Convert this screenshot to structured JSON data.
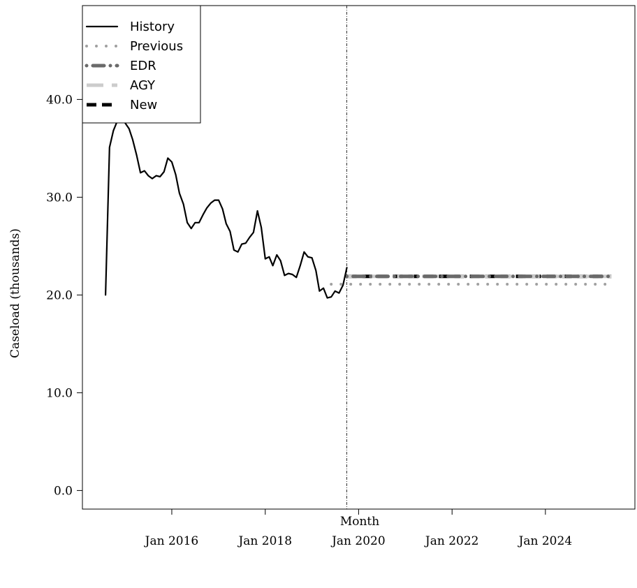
{
  "chart_data": {
    "type": "line",
    "xlabel": "Month",
    "ylabel": "Caseload (thousands)",
    "ylim": [
      -1.9,
      49.6
    ],
    "xlim": [
      "2014-02-01",
      "2025-12-01"
    ],
    "x_ticks": [
      {
        "date": "2016-01-01",
        "label": "Jan 2016"
      },
      {
        "date": "2018-01-01",
        "label": "Jan 2018"
      },
      {
        "date": "2020-01-01",
        "label": "Jan 2020"
      },
      {
        "date": "2022-01-01",
        "label": "Jan 2022"
      },
      {
        "date": "2024-01-01",
        "label": "Jan 2024"
      }
    ],
    "y_ticks": [
      {
        "value": 0,
        "label": "0.0"
      },
      {
        "value": 10,
        "label": "10.0"
      },
      {
        "value": 20,
        "label": "20.0"
      },
      {
        "value": 30,
        "label": "30.0"
      },
      {
        "value": 40,
        "label": "40.0"
      }
    ],
    "vline_date": "2019-10-01",
    "legend_position": "top-left",
    "series": [
      {
        "name": "History",
        "style": "solid",
        "color": "#000000",
        "x": [
          "2014-08-01",
          "2014-09-01",
          "2014-10-01",
          "2014-11-01",
          "2014-12-01",
          "2015-01-01",
          "2015-02-01",
          "2015-03-01",
          "2015-04-01",
          "2015-05-01",
          "2015-06-01",
          "2015-07-01",
          "2015-08-01",
          "2015-09-01",
          "2015-10-01",
          "2015-11-01",
          "2015-12-01",
          "2016-01-01",
          "2016-02-01",
          "2016-03-01",
          "2016-04-01",
          "2016-05-01",
          "2016-06-01",
          "2016-07-01",
          "2016-08-01",
          "2016-09-01",
          "2016-10-01",
          "2016-11-01",
          "2016-12-01",
          "2017-01-01",
          "2017-02-01",
          "2017-03-01",
          "2017-04-01",
          "2017-05-01",
          "2017-06-01",
          "2017-07-01",
          "2017-08-01",
          "2017-09-01",
          "2017-10-01",
          "2017-11-01",
          "2017-12-01",
          "2018-01-01",
          "2018-02-01",
          "2018-03-01",
          "2018-04-01",
          "2018-05-01",
          "2018-06-01",
          "2018-07-01",
          "2018-08-01",
          "2018-09-01",
          "2018-10-01",
          "2018-11-01",
          "2018-12-01",
          "2019-01-01",
          "2019-02-01",
          "2019-03-01",
          "2019-04-01",
          "2019-05-01",
          "2019-06-01",
          "2019-07-01",
          "2019-08-01",
          "2019-09-01",
          "2019-10-01"
        ],
        "values": [
          20.0,
          35.1,
          36.8,
          37.8,
          39.4,
          37.6,
          37.0,
          35.9,
          34.3,
          32.5,
          32.7,
          32.2,
          31.9,
          32.2,
          32.1,
          32.6,
          34.0,
          33.6,
          32.3,
          30.4,
          29.3,
          27.4,
          26.8,
          27.4,
          27.4,
          28.2,
          28.9,
          29.4,
          29.7,
          29.7,
          28.8,
          27.3,
          26.5,
          24.6,
          24.4,
          25.2,
          25.3,
          25.9,
          26.4,
          28.6,
          26.9,
          23.7,
          23.9,
          23.0,
          24.1,
          23.5,
          22.0,
          22.2,
          22.1,
          21.8,
          23.0,
          24.4,
          23.9,
          23.8,
          22.5,
          20.4,
          20.7,
          19.7,
          19.8,
          20.4,
          20.2,
          21.0,
          22.8
        ]
      },
      {
        "name": "Previous",
        "style": "dotted",
        "color": "#a0a0a0",
        "x": [
          "2019-06-01",
          "2025-06-01"
        ],
        "values": [
          21.1,
          21.1
        ]
      },
      {
        "name": "EDR",
        "style": "dotdash",
        "color": "#6a6a6a",
        "x": [
          "2019-10-01",
          "2025-06-01"
        ],
        "values": [
          21.9,
          21.9
        ]
      },
      {
        "name": "AGY",
        "style": "longdash",
        "color": "#cccccc",
        "x": [
          "2019-10-01",
          "2025-06-01"
        ],
        "values": [
          21.9,
          21.9
        ]
      },
      {
        "name": "New",
        "style": "dashed",
        "color": "#000000",
        "x": [
          "2019-10-01",
          "2025-06-01"
        ],
        "values": [
          21.9,
          21.9
        ]
      }
    ]
  }
}
